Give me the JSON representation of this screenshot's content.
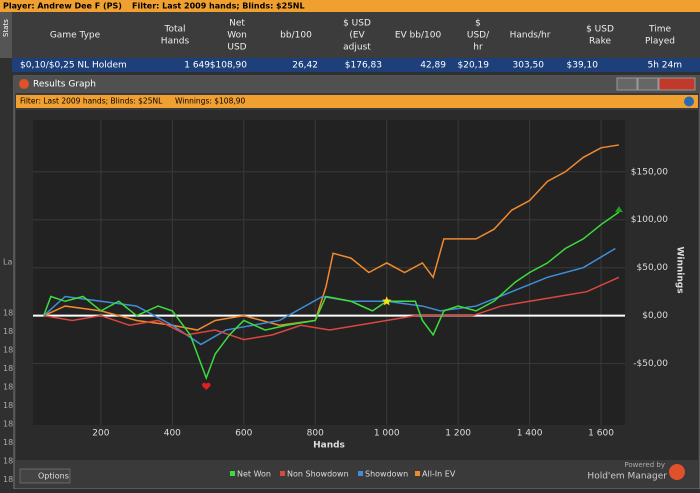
{
  "top_bar": {
    "player": "Player: Andrew Dee F (PS)",
    "filter": "Filter: Last 2009 hands; Blinds: $25NL"
  },
  "side_tab": "Stats",
  "table": {
    "headers": [
      [
        "Game Type"
      ],
      [
        "Total",
        "Hands"
      ],
      [
        "Net",
        "Won",
        "USD"
      ],
      [
        "bb/100"
      ],
      [
        "$ USD",
        "(EV",
        "adjust"
      ],
      [
        "EV bb/100"
      ],
      [
        "$",
        "USD/",
        "hr"
      ],
      [
        "Hands/hr"
      ],
      [
        "$ USD",
        "Rake"
      ],
      [
        "Time",
        "Played"
      ]
    ],
    "rows": [
      [
        "$0,10/$0,25 NL Holdem",
        "1 649",
        "$108,90",
        "26,42",
        "$176,83",
        "42,89",
        "$20,19",
        "303,50",
        "$39,10",
        "5h 24m"
      ]
    ]
  },
  "left_fragments": [
    "La",
    "18",
    "18",
    "18",
    "18",
    "18",
    "18",
    "18",
    "18",
    "18",
    "18"
  ],
  "window": {
    "title": "Results Graph",
    "filter": "Filter: Last 2009 hands; Blinds: $25NL",
    "winnings": "Winnings: $108,90",
    "options": "Options",
    "powered": "Powered by",
    "brand": "Hold'em Manager"
  },
  "chart_data": {
    "type": "line",
    "x_label": "Hands",
    "y_label": "Winnings",
    "xlim": [
      10,
      1667
    ],
    "ylim": [
      -114,
      204
    ],
    "xticks": [
      200,
      400,
      600,
      800,
      {
        "value": 1000,
        "label": "1 000"
      },
      {
        "value": 1200,
        "label": "1 200"
      },
      {
        "value": 1400,
        "label": "1 400"
      },
      {
        "value": 1600,
        "label": "1 600"
      }
    ],
    "yticks": [
      {
        "value": -50,
        "label": "-$50,00"
      },
      {
        "value": 0,
        "label": "$0,00"
      },
      {
        "value": 50,
        "label": "$50,00"
      },
      {
        "value": 100,
        "label": "$100,00"
      },
      {
        "value": 150,
        "label": "$150,00"
      }
    ],
    "grid": true,
    "series": [
      {
        "name": "Net Won",
        "color": "#3ddc3d",
        "x": [
          40,
          60,
          100,
          150,
          200,
          250,
          300,
          360,
          400,
          450,
          480,
          495,
          520,
          560,
          600,
          660,
          720,
          800,
          830,
          900,
          960,
          1000,
          1080,
          1100,
          1130,
          1160,
          1200,
          1250,
          1300,
          1360,
          1400,
          1450,
          1500,
          1550,
          1600,
          1650
        ],
        "values": [
          0,
          20,
          15,
          20,
          5,
          15,
          0,
          10,
          5,
          -20,
          -50,
          -65,
          -40,
          -20,
          -5,
          -15,
          -10,
          -5,
          20,
          15,
          5,
          15,
          15,
          -5,
          -20,
          5,
          10,
          5,
          15,
          35,
          45,
          55,
          70,
          80,
          95,
          108
        ]
      },
      {
        "name": "Non Showdown",
        "color": "#d9473f",
        "x": [
          40,
          120,
          200,
          280,
          360,
          440,
          520,
          600,
          680,
          760,
          840,
          920,
          1000,
          1080,
          1160,
          1240,
          1320,
          1400,
          1480,
          1560,
          1650
        ],
        "values": [
          0,
          -5,
          0,
          -10,
          -5,
          -20,
          -15,
          -25,
          -20,
          -10,
          -15,
          -10,
          -5,
          0,
          0,
          0,
          10,
          15,
          20,
          25,
          40
        ]
      },
      {
        "name": "Showdown",
        "color": "#3f8fd8",
        "x": [
          40,
          100,
          200,
          300,
          400,
          480,
          550,
          700,
          820,
          900,
          1000,
          1100,
          1150,
          1250,
          1350,
          1450,
          1550,
          1640
        ],
        "values": [
          0,
          20,
          15,
          10,
          -10,
          -30,
          -15,
          -5,
          20,
          15,
          15,
          10,
          5,
          10,
          25,
          40,
          50,
          70
        ]
      },
      {
        "name": "All-In EV",
        "color": "#ef8a2e",
        "x": [
          40,
          100,
          200,
          300,
          400,
          470,
          520,
          600,
          700,
          800,
          830,
          850,
          900,
          950,
          1000,
          1050,
          1100,
          1130,
          1160,
          1250,
          1300,
          1350,
          1400,
          1450,
          1500,
          1550,
          1600,
          1650
        ],
        "values": [
          0,
          10,
          5,
          -5,
          -10,
          -15,
          -5,
          0,
          -10,
          -5,
          30,
          65,
          60,
          45,
          55,
          45,
          55,
          40,
          80,
          80,
          90,
          110,
          120,
          140,
          150,
          165,
          175,
          178
        ]
      }
    ]
  }
}
